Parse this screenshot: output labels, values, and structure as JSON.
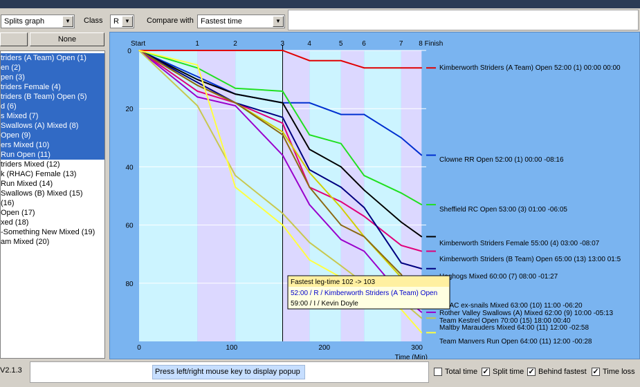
{
  "toolbar": {
    "view_select": "Splits graph",
    "class_label": "Class",
    "class_select": "R",
    "compare_label": "Compare with",
    "compare_select": "Fastest time"
  },
  "left_panel": {
    "none_button": "None",
    "teams": [
      {
        "label": "triders (A Team) Open  (1)",
        "selected": true
      },
      {
        "label": "en  (2)",
        "selected": true
      },
      {
        "label": "pen  (3)",
        "selected": true
      },
      {
        "label": "triders Female  (4)",
        "selected": true
      },
      {
        "label": "triders (B Team) Open  (5)",
        "selected": true
      },
      {
        "label": "d  (6)",
        "selected": true
      },
      {
        "label": "s Mixed  (7)",
        "selected": true
      },
      {
        "label": "Swallows (A) Mixed  (8)",
        "selected": true
      },
      {
        "label": "Open  (9)",
        "selected": true
      },
      {
        "label": "ers Mixed  (10)",
        "selected": true
      },
      {
        "label": " Run Open  (11)",
        "selected": true
      },
      {
        "label": "triders Mixed  (12)",
        "selected": false
      },
      {
        "label": "k (RHAC) Female  (13)",
        "selected": false
      },
      {
        "label": " Run Mixed  (14)",
        "selected": false
      },
      {
        "label": "Swallows (B) Mixed  (15)",
        "selected": false
      },
      {
        "label": "  (16)",
        "selected": false
      },
      {
        "label": "Open  (17)",
        "selected": false
      },
      {
        "label": "xed  (18)",
        "selected": false
      },
      {
        "label": "-Something New Mixed  (19)",
        "selected": false
      },
      {
        "label": "am Mixed  (20)",
        "selected": false
      }
    ]
  },
  "chart_data": {
    "type": "line",
    "title": "",
    "xlabel": "Time (Min)",
    "ylabel": "",
    "xlim": [
      0,
      310
    ],
    "ylim": [
      0,
      100
    ],
    "x_ticks": [
      0,
      100,
      200,
      300
    ],
    "y_ticks": [
      0,
      20,
      40,
      60,
      80
    ],
    "controls": [
      "Start",
      "1",
      "2",
      "3",
      "4",
      "5",
      "6",
      "7",
      "8 Finish"
    ],
    "control_times": [
      0,
      63,
      104,
      155,
      184,
      218,
      243,
      283,
      305
    ],
    "cursor_time": 155,
    "series": [
      {
        "name": "Kimberworth Striders (A Team) Open  52:00 (1) 00:00  00:00",
        "color": "#e00000",
        "values": [
          0,
          0,
          0,
          0,
          3.5,
          3.5,
          6,
          6,
          6
        ]
      },
      {
        "name": "Clowne RR Open  52:00 (1) 00:00  -08:16",
        "color": "#0030d0",
        "values": [
          0,
          9,
          15,
          18,
          18,
          22,
          22,
          30,
          36
        ]
      },
      {
        "name": "Sheffield RC Open  53:00 (3) 01:00  -06:05",
        "color": "#20e020",
        "values": [
          0,
          6,
          13,
          14,
          29,
          32,
          43,
          49,
          53
        ]
      },
      {
        "name": "Kimberworth Striders Female  55:00 (4) 03:00  -08:07",
        "color": "#000000",
        "values": [
          0,
          10,
          15,
          18,
          34,
          40,
          48,
          59,
          64
        ]
      },
      {
        "name": "Kimberworth Striders (B Team) Open  65:00 (13)  13:00  01:5",
        "color": "#e0007a",
        "values": [
          0,
          14,
          18,
          25,
          47,
          52,
          57,
          67,
          69
        ]
      },
      {
        "name": "Hoghogs Mixed  60:00 (7)  08:00  -01:27",
        "color": "#000080",
        "values": [
          0,
          11,
          18,
          23,
          41,
          47,
          54,
          73,
          75
        ]
      },
      {
        "name": "RHAC ex-snails Mixed  63:00 (10)  11:00  -06:20",
        "color": "#d0d000",
        "values": [
          0,
          12,
          18,
          28,
          42,
          54,
          64,
          78,
          85
        ]
      },
      {
        "name": "Rother Valley Swallows (A) Mixed  62:00 (9)  10:00  -05:13",
        "color": "#8b6914",
        "values": [
          0,
          12,
          18,
          29,
          47,
          60,
          64,
          77,
          88
        ]
      },
      {
        "name": "Team Kestrel Open  70:00 (15)  18:00  00:40",
        "color": "#9900cc",
        "values": [
          0,
          16,
          19,
          36,
          53,
          65,
          69,
          84,
          90
        ]
      },
      {
        "name": "Maltby Marauders Mixed  64:00 (11)  12:00  -02:58",
        "color": "#c8c850",
        "values": [
          0,
          19,
          43,
          56,
          66,
          74,
          80,
          86,
          92
        ]
      },
      {
        "name": "Team Manvers Run Open  64:00 (11)  12:00  -00:28",
        "color": "#ffff40",
        "values": [
          0,
          5,
          47,
          60,
          72,
          78,
          83,
          89,
          97
        ]
      }
    ]
  },
  "popup": {
    "title": "Fastest leg-time  102 -> 103",
    "line1": "52:00 / R / Kimberworth Striders (A Team) Open",
    "line2": "59:00 / I / Kevin Doyle"
  },
  "status": {
    "version": "V2.1.3",
    "hint": "Press left/right mouse key to display popup"
  },
  "checkboxes": [
    {
      "label": "Total time",
      "checked": false
    },
    {
      "label": "Split time",
      "checked": true
    },
    {
      "label": "Behind fastest",
      "checked": true
    },
    {
      "label": "Time loss",
      "checked": true
    }
  ]
}
